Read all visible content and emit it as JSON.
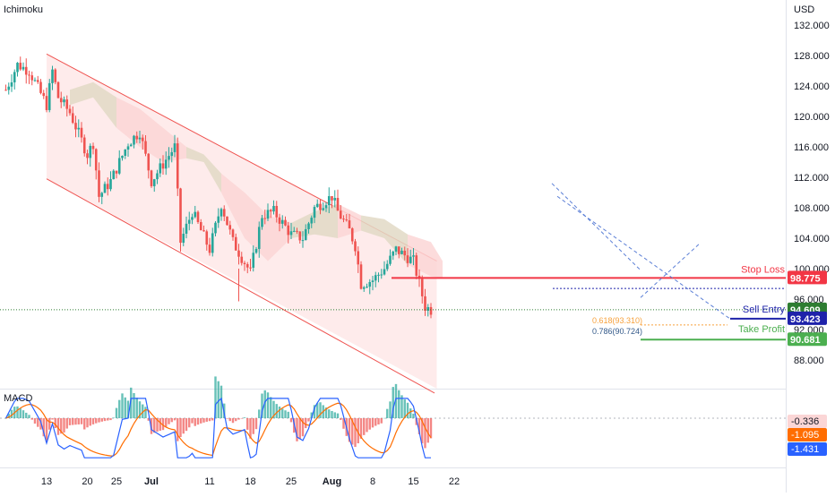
{
  "indicator_label": "Ichimoku",
  "currency": "USD",
  "macd_label": "MACD",
  "colors": {
    "up": "#26a69a",
    "down": "#ef5350",
    "channel_fill": "#fde4e4",
    "channel_line": "#ef5350",
    "cloud_bull": "#e2d9c6",
    "cloud_bear": "#fbd6d6",
    "stop_loss": "#f23645",
    "sell_entry": "#1e22aa",
    "take_profit": "#4caf50",
    "current": "#2e7d32",
    "fib_618": "#f7a13c",
    "fib_786": "#2e7d32",
    "dashed": "#5b7fd6",
    "macd_line": "#2962ff",
    "signal_line": "#ff6d00"
  },
  "chart_data": {
    "type": "candlestick",
    "title": "",
    "ylim": [
      84,
      134
    ],
    "y_ticks": [
      "132.000",
      "128.000",
      "124.000",
      "120.000",
      "116.000",
      "112.000",
      "108.000",
      "104.000",
      "100.000",
      "96.000",
      "92.000",
      "88.000"
    ],
    "x_ticks": [
      "13",
      "20",
      "25",
      "Jul",
      "11",
      "18",
      "25",
      "Aug",
      "8",
      "15",
      "22"
    ],
    "last_price": 94.609,
    "levels": [
      {
        "name": "Stop Loss",
        "value": 98.775
      },
      {
        "name": "Sell Entry",
        "value": 93.423
      },
      {
        "name": "Take Profit",
        "value": 90.681
      }
    ],
    "fibonacci": [
      {
        "label": "0.618(93.310)",
        "value": 93.31
      },
      {
        "label": "0.786(90.724)",
        "value": 90.724
      }
    ],
    "channel": {
      "upper": [
        {
          "x": "Jun 13",
          "y": 128.2
        },
        {
          "x": "Aug 19",
          "y": 101.0
        }
      ],
      "lower": [
        {
          "x": "Jun 13",
          "y": 111.8
        },
        {
          "x": "Aug 19",
          "y": 84.6
        }
      ]
    },
    "price_path": [
      {
        "x": "Jun 6",
        "y": 123.5
      },
      {
        "x": "Jun 8",
        "y": 126.8
      },
      {
        "x": "Jun 10",
        "y": 126.0
      },
      {
        "x": "Jun 13",
        "y": 121.5
      },
      {
        "x": "Jun 14",
        "y": 126.0
      },
      {
        "x": "Jun 15",
        "y": 122.5
      },
      {
        "x": "Jun 17",
        "y": 120.5
      },
      {
        "x": "Jun 20",
        "y": 115.0
      },
      {
        "x": "Jun 21",
        "y": 116.5
      },
      {
        "x": "Jun 22",
        "y": 109.5
      },
      {
        "x": "Jun 24",
        "y": 111.5
      },
      {
        "x": "Jun 27",
        "y": 116.5
      },
      {
        "x": "Jun 29",
        "y": 118.0
      },
      {
        "x": "Jul 1",
        "y": 111.5
      },
      {
        "x": "Jul 5",
        "y": 116.0
      },
      {
        "x": "Jul 6",
        "y": 103.5
      },
      {
        "x": "Jul 8",
        "y": 107.5
      },
      {
        "x": "Jul 11",
        "y": 102.5
      },
      {
        "x": "Jul 13",
        "y": 108.5
      },
      {
        "x": "Jul 15",
        "y": 103.5
      },
      {
        "x": "Jul 18",
        "y": 99.5
      },
      {
        "x": "Jul 20",
        "y": 107.0
      },
      {
        "x": "Jul 22",
        "y": 107.5
      },
      {
        "x": "Jul 25",
        "y": 104.5
      },
      {
        "x": "Jul 27",
        "y": 104.0
      },
      {
        "x": "Jul 29",
        "y": 108.0
      },
      {
        "x": "Aug 1",
        "y": 109.5
      },
      {
        "x": "Aug 2",
        "y": 107.5
      },
      {
        "x": "Aug 4",
        "y": 105.0
      },
      {
        "x": "Aug 5",
        "y": 103.0
      },
      {
        "x": "Aug 6",
        "y": 98.0
      },
      {
        "x": "Aug 8",
        "y": 98.5
      },
      {
        "x": "Aug 10",
        "y": 100.0
      },
      {
        "x": "Aug 12",
        "y": 102.5
      },
      {
        "x": "Aug 15",
        "y": 101.0
      },
      {
        "x": "Aug 17",
        "y": 95.0
      },
      {
        "x": "Aug 18",
        "y": 94.6
      }
    ],
    "macd": {
      "labels": [
        {
          "name": "MACD histogram",
          "value": "-0.336"
        },
        {
          "name": "Signal",
          "value": "-1.095"
        },
        {
          "name": "MACD",
          "value": "-1.431"
        }
      ]
    }
  }
}
